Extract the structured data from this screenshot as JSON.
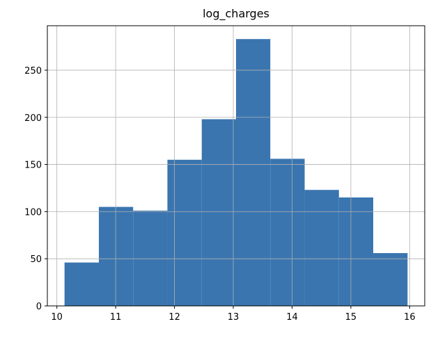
{
  "chart_data": {
    "type": "histogram",
    "title": "log_charges",
    "bins": [
      10.13,
      10.714,
      11.297,
      11.88,
      12.464,
      13.047,
      13.63,
      14.214,
      14.797,
      15.38,
      15.964
    ],
    "values": [
      46,
      105,
      101,
      155,
      198,
      283,
      156,
      123,
      115,
      56
    ],
    "color": "#3a75af",
    "xlim": [
      9.838,
      16.256
    ],
    "xticks": [
      10,
      11,
      12,
      13,
      14,
      15,
      16
    ],
    "ylim": [
      0,
      297.15
    ],
    "yticks": [
      0,
      50,
      100,
      150,
      200,
      250
    ],
    "grid": true
  }
}
